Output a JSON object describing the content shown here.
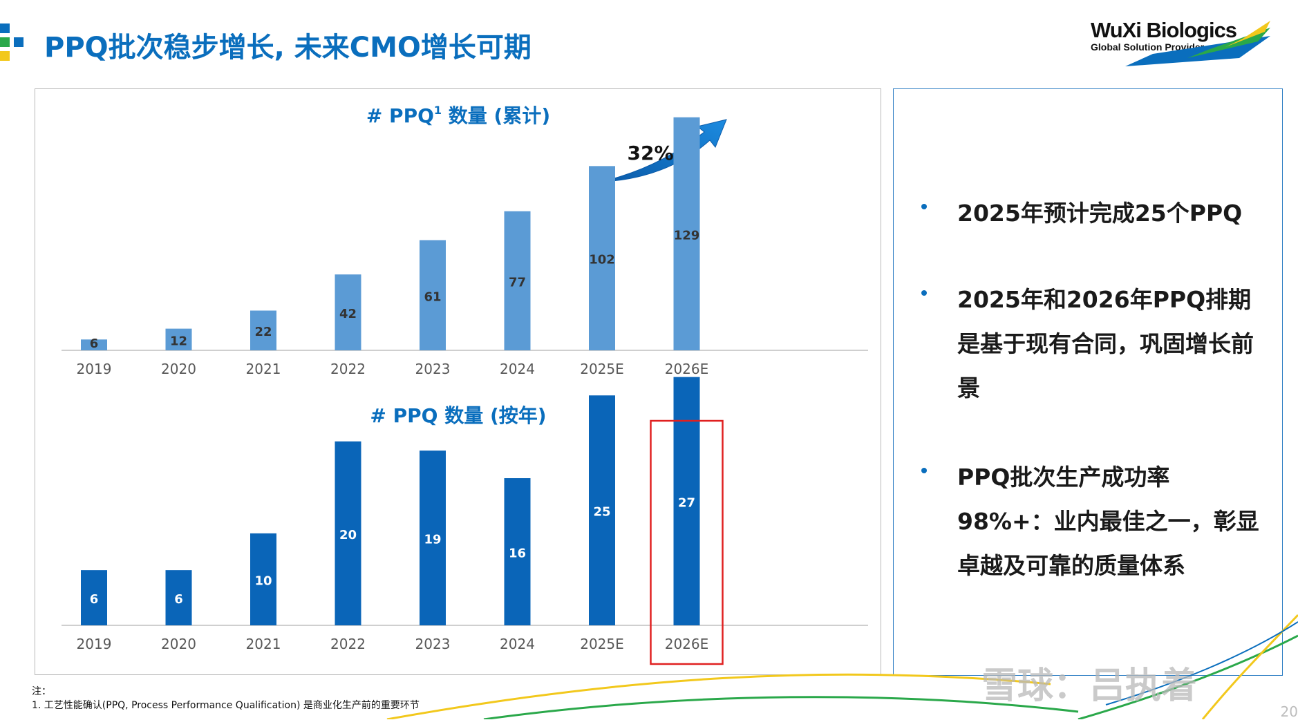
{
  "header": {
    "title": "PPQ批次稳步增长, 未来CMO增长可期",
    "logo_name": "WuXi Biologics",
    "logo_tagline": "Global Solution Provider"
  },
  "colors": {
    "title_blue": "#0a6ebd",
    "bar_light": "#5b9bd5",
    "bar_dark": "#0a65b8",
    "highlight_box": "#e02020",
    "accent_green": "#2aa84a",
    "accent_yellow": "#f2c81c"
  },
  "chart_data": [
    {
      "type": "bar",
      "title": "# PPQ",
      "title_sup": "1",
      "title_suffix": " 数量 (累计)",
      "categories": [
        "2019",
        "2020",
        "2021",
        "2022",
        "2023",
        "2024",
        "2025E",
        "2026E"
      ],
      "values": [
        6,
        12,
        22,
        42,
        61,
        77,
        102,
        129
      ],
      "annotation": "32%",
      "bar_color": "#5b9bd5",
      "grid": false,
      "legend": "none"
    },
    {
      "type": "bar",
      "title": "# PPQ 数量 (按年)",
      "categories": [
        "2019",
        "2020",
        "2021",
        "2022",
        "2023",
        "2024",
        "2025E",
        "2026E"
      ],
      "values": [
        6,
        6,
        10,
        20,
        19,
        16,
        25,
        27
      ],
      "highlighted_category": "2026E",
      "bar_color": "#0a65b8",
      "grid": false,
      "legend": "none"
    }
  ],
  "side_panel": {
    "bullets": [
      "2025年预计完成25个PPQ",
      "2025年和2026年PPQ排期是基于现有合同，巩固增长前景",
      "PPQ批次生产成功率98%+：业内最佳之一，彰显卓越及可靠的质量体系"
    ]
  },
  "footnote": {
    "label": "注：",
    "line1": "1. 工艺性能确认(PPQ, Process Performance Qualification) 是商业化生产前的重要环节"
  },
  "watermark": "雪球：吕执着",
  "page_number": "20"
}
